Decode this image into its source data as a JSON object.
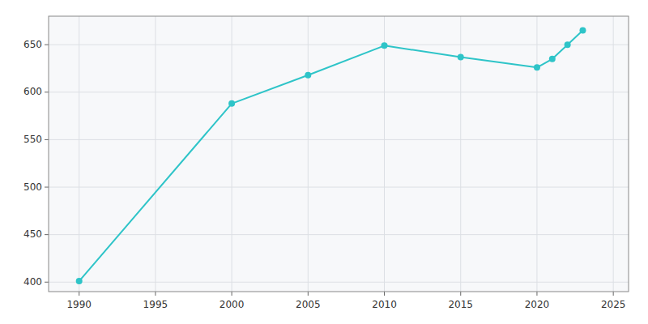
{
  "chart_data": {
    "type": "line",
    "x": [
      1990,
      2000,
      2005,
      2010,
      2015,
      2020,
      2021,
      2022,
      2023
    ],
    "values": [
      401,
      588,
      618,
      649,
      637,
      626,
      635,
      650,
      665
    ],
    "color": "#2EC4C8",
    "marker": "circle",
    "xlim": [
      1988,
      2026
    ],
    "ylim": [
      390,
      680
    ],
    "xticks": [
      1990,
      1995,
      2000,
      2005,
      2010,
      2015,
      2020,
      2025
    ],
    "yticks": [
      400,
      450,
      500,
      550,
      600,
      650
    ],
    "grid": true
  }
}
